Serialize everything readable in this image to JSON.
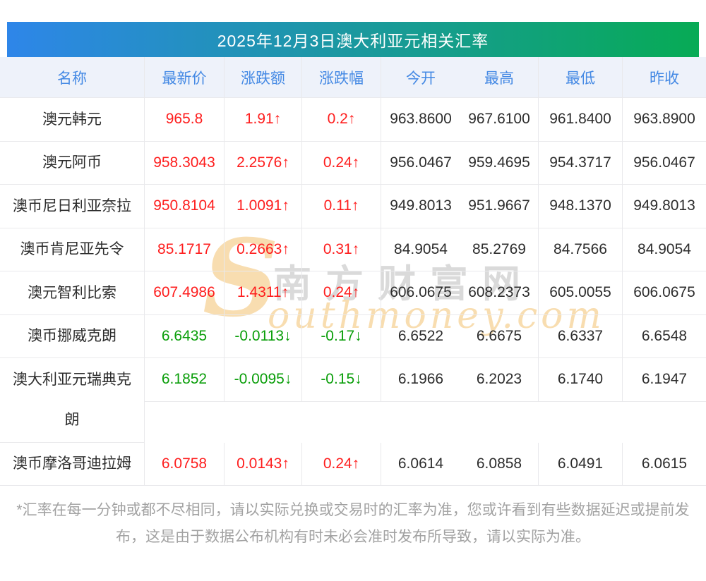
{
  "title": "2025年12月3日澳大利亚元相关汇率",
  "chart_data": {
    "type": "table",
    "title": "2025年12月3日澳大利亚元相关汇率",
    "columns": [
      "名称",
      "最新价",
      "涨跌额",
      "涨跌幅",
      "今开",
      "最高",
      "最低",
      "昨收"
    ],
    "rows": [
      {
        "name": "澳元韩元",
        "last": "965.8",
        "change": "1.91↑",
        "pct": "0.2↑",
        "open": "963.8600",
        "high": "967.6100",
        "low": "961.8400",
        "prev_close": "963.8900",
        "trend": "up"
      },
      {
        "name": "澳元阿币",
        "last": "958.3043",
        "change": "2.2576↑",
        "pct": "0.24↑",
        "open": "956.0467",
        "high": "959.4695",
        "low": "954.3717",
        "prev_close": "956.0467",
        "trend": "up"
      },
      {
        "name": "澳币尼日利亚奈拉",
        "last": "950.8104",
        "change": "1.0091↑",
        "pct": "0.11↑",
        "open": "949.8013",
        "high": "951.9667",
        "low": "948.1370",
        "prev_close": "949.8013",
        "trend": "up"
      },
      {
        "name": "澳币肯尼亚先令",
        "last": "85.1717",
        "change": "0.2663↑",
        "pct": "0.31↑",
        "open": "84.9054",
        "high": "85.2769",
        "low": "84.7566",
        "prev_close": "84.9054",
        "trend": "up"
      },
      {
        "name": "澳元智利比索",
        "last": "607.4986",
        "change": "1.4311↑",
        "pct": "0.24↑",
        "open": "606.0675",
        "high": "608.2373",
        "low": "605.0055",
        "prev_close": "606.0675",
        "trend": "up"
      },
      {
        "name": "澳币挪威克朗",
        "last": "6.6435",
        "change": "-0.0113↓",
        "pct": "-0.17↓",
        "open": "6.6522",
        "high": "6.6675",
        "low": "6.6337",
        "prev_close": "6.6548",
        "trend": "down"
      },
      {
        "name": "澳大利亚元瑞典克朗",
        "last": "6.1852",
        "change": "-0.0095↓",
        "pct": "-0.15↓",
        "open": "6.1966",
        "high": "6.2023",
        "low": "6.1740",
        "prev_close": "6.1947",
        "trend": "down"
      },
      {
        "name": "澳币摩洛哥迪拉姆",
        "last": "6.0758",
        "change": "0.0143↑",
        "pct": "0.24↑",
        "open": "6.0614",
        "high": "6.0858",
        "low": "6.0491",
        "prev_close": "6.0615",
        "trend": "up"
      }
    ]
  },
  "watermark": {
    "s_glyph": "S",
    "cn_text": "南方财富网",
    "en_text": "outhmoney.com"
  },
  "footer_note": "*汇率在每一分钟或都不尽相同，请以实际兑换或交易时的汇率为准，您或许看到有些数据延迟或提前发布，这是由于数据公布机构有时未必会准时发布所导致，请以实际为准。",
  "colors": {
    "up": "#fe1d1d",
    "down": "#0a9e0a",
    "header_bar_gradient_start": "#2e86e9",
    "header_bar_gradient_end": "#07ab55",
    "column_header_text": "#4489e4",
    "column_header_bg": "#eef2fa",
    "border": "#e9e9ec",
    "body_text": "#2d2d2d",
    "footer_text": "#a2a2a2",
    "watermark_gray": "#dadada",
    "watermark_orange": "#f8ddb0"
  }
}
